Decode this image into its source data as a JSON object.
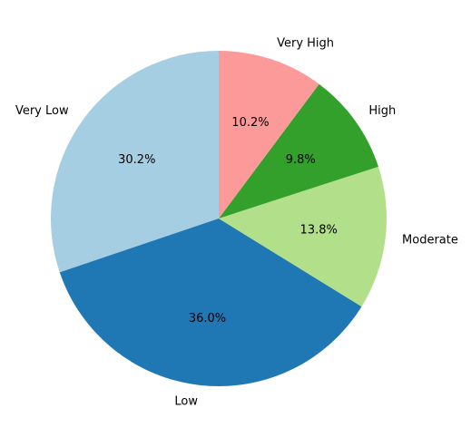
{
  "chart_data": {
    "type": "pie",
    "categories": [
      "Very Low",
      "Low",
      "Moderate",
      "High",
      "Very High"
    ],
    "values": [
      30.2,
      36.0,
      13.8,
      9.8,
      10.2
    ],
    "percent_labels": [
      "30.2%",
      "36.0%",
      "13.8%",
      "9.8%",
      "10.2%"
    ],
    "colors": [
      "#a6cee3",
      "#1f78b4",
      "#b2df8a",
      "#33a02c",
      "#fb9a99"
    ],
    "start_angle_deg": 90,
    "direction": "counterclockwise",
    "title": "",
    "legend": "none"
  }
}
